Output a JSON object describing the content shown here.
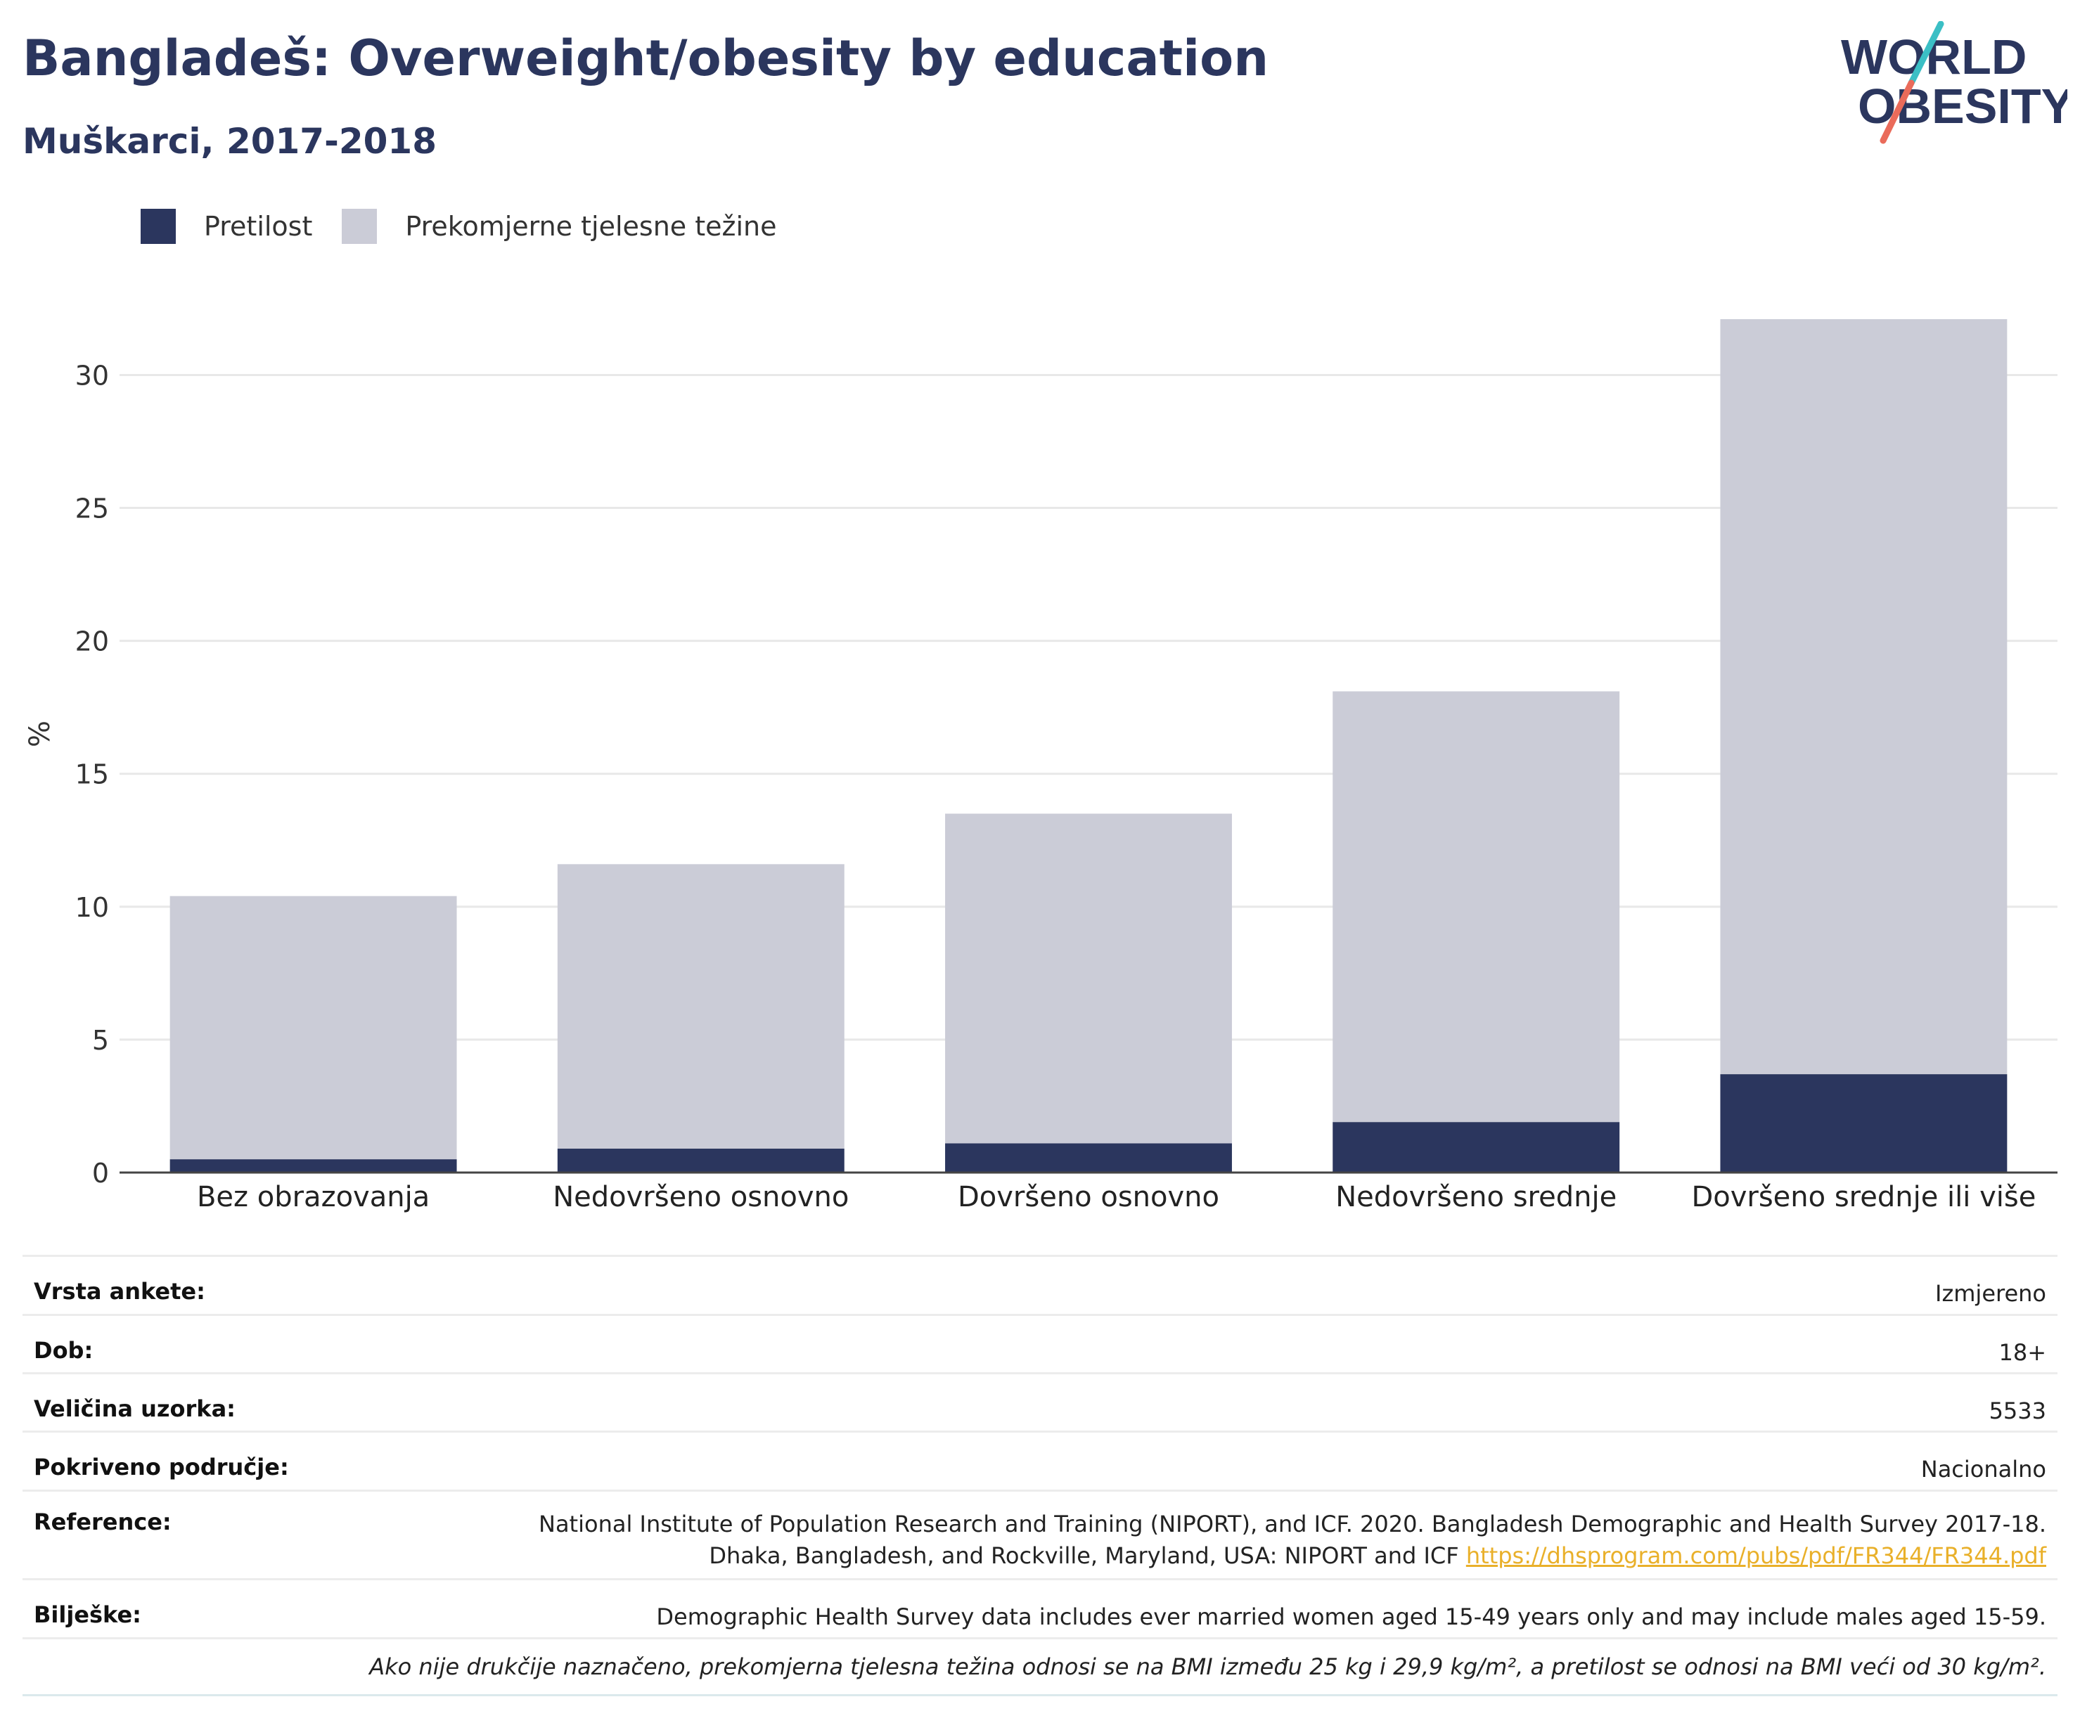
{
  "header": {
    "title": "Bangladeš: Overweight/obesity by education",
    "subtitle": "Muškarci, 2017-2018"
  },
  "logo": {
    "line1": "WORLD",
    "line2": "OBESITY"
  },
  "colors": {
    "obesity": "#2b365e",
    "overweight": "#cbccd7",
    "title": "#2b365e",
    "link": "#e9b02a",
    "logo_slash_top": "#3bbfc5",
    "logo_slash_bottom": "#ea6b5a"
  },
  "chart_data": {
    "type": "bar",
    "stacked": true,
    "categories": [
      "Bez obrazovanja",
      "Nedovršeno osnovno",
      "Dovršeno osnovno",
      "Nedovršeno srednje",
      "Dovršeno srednje ili više"
    ],
    "series": [
      {
        "name": "Pretilost",
        "values": [
          0.5,
          0.9,
          1.1,
          1.9,
          3.7
        ]
      },
      {
        "name": "Prekomjerne tjelesne težine",
        "values": [
          9.9,
          10.7,
          12.4,
          16.2,
          28.4
        ]
      }
    ],
    "ylabel": "%",
    "ylim": [
      0,
      33
    ],
    "yticks": [
      0,
      5,
      10,
      15,
      20,
      25,
      30
    ],
    "grid": true,
    "legend_position": "top-left"
  },
  "info": {
    "rows": [
      {
        "key": "Vrsta ankete:",
        "value": "Izmjereno"
      },
      {
        "key": "Dob:",
        "value": "18+"
      },
      {
        "key": "Veličina uzorka:",
        "value": "5533"
      },
      {
        "key": "Pokriveno područje:",
        "value": "Nacionalno"
      }
    ],
    "reference_key": "Reference:",
    "reference_line1": "National Institute of Population Research and Training (NIPORT), and ICF. 2020. Bangladesh Demographic and Health Survey 2017-18.",
    "reference_line2": "Dhaka, Bangladesh, and Rockville, Maryland, USA: NIPORT and ICF",
    "reference_link": "https://dhsprogram.com/pubs/pdf/FR344/FR344.pdf",
    "notes_key": "Bilješke:",
    "notes_value": "Demographic Health Survey data includes ever married women aged 15-49 years only and may include males aged 15-59.",
    "footnote": "Ako nije drukčije naznačeno, prekomjerna tjelesna težina odnosi se na BMI između 25 kg i 29,9 kg/m², a pretilost se odnosi na BMI veći od 30 kg/m²."
  }
}
